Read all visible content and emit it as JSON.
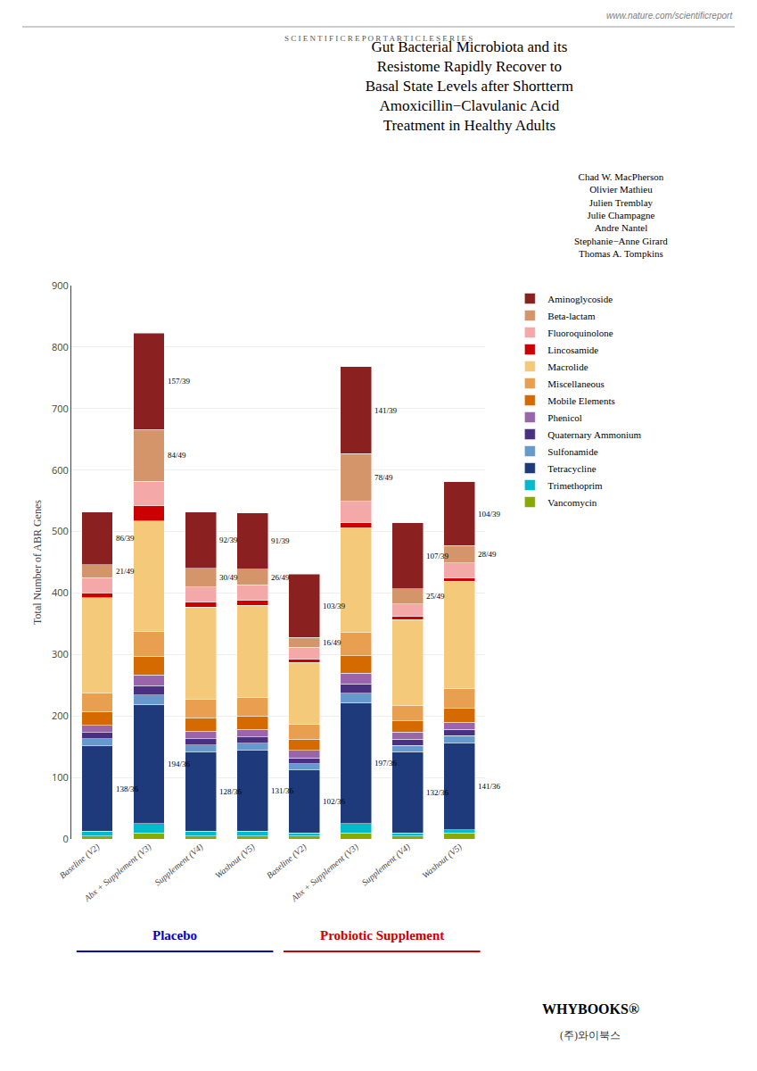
{
  "chart_data": {
    "type": "bar",
    "stacked": true,
    "grid": true,
    "legend": "right",
    "title": "Gut Bacterial Microbiota and its\nResistome Rapidly Recover to\nBasal State Levels after Shortterm\nAmoxicillin−Clavulanic Acid\nTreatment in Healthy Adults",
    "subtitle_web": "www.nature.com/scientificreport",
    "subtitle_series": "S C I E N T I F I C R E P O R T A R T I C L E S E R I E S",
    "authors": [
      "Chad W. MacPherson",
      "Olivier Mathieu",
      "Julien Tremblay",
      "Julie Champagne",
      "Andre Nantel",
      "Stephanie−Anne Girard",
      "Thomas A. Tompkins"
    ],
    "ylabel": "Total Number of ABR Genes",
    "ylim": [
      0,
      900
    ],
    "yticks": [
      0,
      100,
      200,
      300,
      400,
      500,
      600,
      700,
      800,
      900
    ],
    "categories": [
      "Baseline (V2)",
      "Abx + Supplement (V3)",
      "Supplement (V4)",
      "Washout (V5)",
      "Baseline (V2)",
      "Abx + Supplement (V3)",
      "Supplement (V4)",
      "Washout (V5)"
    ],
    "groups": [
      {
        "label": "Placebo",
        "color": "#0000CC"
      },
      {
        "label": "Probiotic Supplement",
        "color": "#CC0000"
      }
    ],
    "series": [
      {
        "name": "Vancomycin",
        "color": "#88AA00",
        "values": [
          5,
          10,
          5,
          5,
          5,
          10,
          5,
          10
        ]
      },
      {
        "name": "Trimethoprim",
        "color": "#00BBCC",
        "values": [
          8,
          15,
          8,
          8,
          5,
          15,
          5,
          5
        ]
      },
      {
        "name": "Tetracycline",
        "color": "#1F3A7A",
        "values": [
          138,
          194,
          128,
          131,
          102,
          197,
          132,
          141
        ],
        "value_labels": [
          "138/36",
          "194/36",
          "128/36",
          "131/36",
          "102/36",
          "197/36",
          "132/36",
          "141/36"
        ]
      },
      {
        "name": "Sulfonamide",
        "color": "#6699CC",
        "values": [
          12,
          15,
          12,
          12,
          10,
          15,
          10,
          12
        ]
      },
      {
        "name": "Quaternary Ammonium",
        "color": "#4A3080",
        "values": [
          10,
          15,
          10,
          10,
          10,
          15,
          10,
          10
        ]
      },
      {
        "name": "Phenicol",
        "color": "#9966AA",
        "values": [
          12,
          18,
          12,
          12,
          12,
          18,
          12,
          12
        ]
      },
      {
        "name": "Mobile Elements",
        "color": "#D46A00",
        "values": [
          22,
          30,
          22,
          22,
          18,
          28,
          18,
          22
        ]
      },
      {
        "name": "Miscellaneous",
        "color": "#E8A050",
        "values": [
          30,
          40,
          30,
          30,
          25,
          38,
          25,
          32
        ]
      },
      {
        "name": "Macrolide",
        "color": "#F5C97A",
        "values": [
          155,
          180,
          150,
          150,
          100,
          170,
          140,
          175
        ]
      },
      {
        "name": "Lincosamide",
        "color": "#CC0000",
        "values": [
          8,
          25,
          8,
          8,
          5,
          8,
          5,
          5
        ]
      },
      {
        "name": "Fluoroquinolone",
        "color": "#F4A9A8",
        "values": [
          25,
          40,
          25,
          25,
          20,
          35,
          20,
          25
        ]
      },
      {
        "name": "Beta-lactam",
        "color": "#D4956A",
        "values": [
          21,
          84,
          30,
          26,
          16,
          78,
          25,
          28
        ],
        "value_labels": [
          "21/49",
          "84/49",
          "30/49",
          "26/49",
          "16/49",
          "78/49",
          "25/49",
          "28/49"
        ]
      },
      {
        "name": "Aminoglycoside",
        "color": "#8B2020",
        "values": [
          86,
          157,
          92,
          91,
          103,
          141,
          107,
          104
        ],
        "value_labels": [
          "86/39",
          "157/39",
          "92/39",
          "91/39",
          "103/39",
          "141/39",
          "107/39",
          "104/39"
        ]
      }
    ],
    "footer": [
      "WHYBOOKS®",
      "(주)와이북스"
    ]
  }
}
